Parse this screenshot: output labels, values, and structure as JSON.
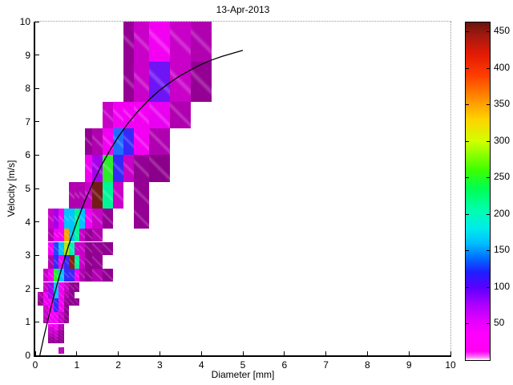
{
  "title": "13-Apr-2013",
  "chart_data": {
    "type": "heatmap",
    "title": "13-Apr-2013",
    "xlabel": "Diameter [mm]",
    "ylabel": "Velocity [m/s]",
    "xlim": [
      0,
      10
    ],
    "ylim": [
      0,
      10
    ],
    "xticks": [
      0,
      1,
      2,
      3,
      4,
      5,
      6,
      7,
      8,
      9,
      10
    ],
    "yticks": [
      0,
      1,
      2,
      3,
      4,
      5,
      6,
      7,
      8,
      9,
      10
    ],
    "grid": false,
    "legend": "none",
    "colorbar_ticks": [
      50,
      100,
      150,
      200,
      250,
      300,
      350,
      400,
      450
    ],
    "value_max": 462,
    "d_edges": [
      0.062,
      0.187,
      0.312,
      0.437,
      0.562,
      0.687,
      0.812,
      0.937,
      1.062,
      1.187,
      1.375,
      1.625,
      1.875,
      2.125,
      2.375,
      2.75,
      3.25,
      3.75,
      4.25,
      4.75
    ],
    "v_edges": [
      0.05,
      0.15,
      0.25,
      0.35,
      0.45,
      0.55,
      0.65,
      0.75,
      0.85,
      0.95,
      1.1,
      1.3,
      1.5,
      1.7,
      1.9,
      2.2,
      2.6,
      3.0,
      3.4,
      3.8,
      4.4,
      5.2,
      6.0,
      6.8,
      7.6,
      8.8,
      10.4
    ],
    "cells": [
      [
        4,
        0,
        22
      ],
      [
        4,
        1,
        22
      ],
      [
        2,
        3,
        12
      ],
      [
        3,
        3,
        15
      ],
      [
        4,
        3,
        12
      ],
      [
        2,
        4,
        15
      ],
      [
        3,
        4,
        20
      ],
      [
        4,
        4,
        12
      ],
      [
        2,
        5,
        20
      ],
      [
        3,
        5,
        25
      ],
      [
        4,
        5,
        15
      ],
      [
        2,
        6,
        25
      ],
      [
        3,
        6,
        25
      ],
      [
        4,
        6,
        15
      ],
      [
        2,
        7,
        25
      ],
      [
        3,
        7,
        35
      ],
      [
        4,
        7,
        20
      ],
      [
        2,
        8,
        35
      ],
      [
        3,
        8,
        35
      ],
      [
        4,
        8,
        20
      ],
      [
        1,
        9,
        20
      ],
      [
        2,
        9,
        35
      ],
      [
        3,
        9,
        35
      ],
      [
        4,
        9,
        25
      ],
      [
        5,
        9,
        12
      ],
      [
        1,
        10,
        25
      ],
      [
        2,
        10,
        38
      ],
      [
        3,
        10,
        35
      ],
      [
        4,
        10,
        25
      ],
      [
        5,
        10,
        12
      ],
      [
        1,
        11,
        25
      ],
      [
        2,
        11,
        35
      ],
      [
        3,
        11,
        110
      ],
      [
        4,
        11,
        35
      ],
      [
        5,
        11,
        12
      ],
      [
        0,
        12,
        15
      ],
      [
        1,
        12,
        35
      ],
      [
        2,
        12,
        35
      ],
      [
        3,
        12,
        110
      ],
      [
        4,
        12,
        35
      ],
      [
        5,
        12,
        15
      ],
      [
        6,
        12,
        12
      ],
      [
        7,
        12,
        12
      ],
      [
        0,
        13,
        20
      ],
      [
        1,
        13,
        35
      ],
      [
        2,
        13,
        70
      ],
      [
        3,
        13,
        160
      ],
      [
        4,
        13,
        35
      ],
      [
        5,
        13,
        20
      ],
      [
        6,
        13,
        12
      ],
      [
        1,
        14,
        25
      ],
      [
        2,
        14,
        70
      ],
      [
        3,
        14,
        160
      ],
      [
        4,
        14,
        35
      ],
      [
        5,
        14,
        25
      ],
      [
        6,
        14,
        15
      ],
      [
        7,
        14,
        12
      ],
      [
        1,
        15,
        25
      ],
      [
        2,
        15,
        35
      ],
      [
        3,
        15,
        260
      ],
      [
        4,
        15,
        160
      ],
      [
        5,
        15,
        110
      ],
      [
        6,
        15,
        110
      ],
      [
        7,
        15,
        35
      ],
      [
        8,
        15,
        20
      ],
      [
        9,
        15,
        12
      ],
      [
        10,
        15,
        20
      ],
      [
        11,
        15,
        12
      ],
      [
        2,
        16,
        20
      ],
      [
        3,
        16,
        110
      ],
      [
        4,
        16,
        35
      ],
      [
        5,
        16,
        110
      ],
      [
        6,
        16,
        440
      ],
      [
        7,
        16,
        210
      ],
      [
        8,
        16,
        25
      ],
      [
        9,
        16,
        12
      ],
      [
        10,
        16,
        15
      ],
      [
        2,
        17,
        35
      ],
      [
        3,
        17,
        120
      ],
      [
        4,
        17,
        160
      ],
      [
        5,
        17,
        310
      ],
      [
        6,
        17,
        200
      ],
      [
        7,
        17,
        25
      ],
      [
        8,
        17,
        25
      ],
      [
        9,
        17,
        12
      ],
      [
        10,
        17,
        15
      ],
      [
        11,
        17,
        12
      ],
      [
        2,
        18,
        20
      ],
      [
        3,
        18,
        35
      ],
      [
        4,
        18,
        35
      ],
      [
        5,
        18,
        360
      ],
      [
        6,
        18,
        160
      ],
      [
        7,
        18,
        210
      ],
      [
        8,
        18,
        25
      ],
      [
        9,
        18,
        15
      ],
      [
        10,
        18,
        20
      ],
      [
        2,
        19,
        25
      ],
      [
        3,
        19,
        70
      ],
      [
        4,
        19,
        35
      ],
      [
        5,
        19,
        160
      ],
      [
        6,
        19,
        160
      ],
      [
        7,
        19,
        210
      ],
      [
        8,
        19,
        160
      ],
      [
        9,
        19,
        35
      ],
      [
        10,
        19,
        25
      ],
      [
        11,
        19,
        15
      ],
      [
        14,
        19,
        15
      ],
      [
        6,
        20,
        20
      ],
      [
        7,
        20,
        20
      ],
      [
        8,
        20,
        20
      ],
      [
        9,
        20,
        25
      ],
      [
        10,
        20,
        450
      ],
      [
        11,
        20,
        210
      ],
      [
        12,
        20,
        25
      ],
      [
        14,
        20,
        15
      ],
      [
        9,
        21,
        35
      ],
      [
        10,
        21,
        70
      ],
      [
        11,
        21,
        260
      ],
      [
        12,
        21,
        110
      ],
      [
        13,
        21,
        25
      ],
      [
        14,
        21,
        15
      ],
      [
        15,
        21,
        10
      ],
      [
        9,
        22,
        15
      ],
      [
        10,
        22,
        20
      ],
      [
        11,
        22,
        35
      ],
      [
        12,
        22,
        140
      ],
      [
        13,
        22,
        110
      ],
      [
        14,
        22,
        35
      ],
      [
        15,
        22,
        20
      ],
      [
        11,
        23,
        25
      ],
      [
        12,
        23,
        35
      ],
      [
        13,
        23,
        35
      ],
      [
        14,
        23,
        35
      ],
      [
        15,
        23,
        50
      ],
      [
        16,
        23,
        20
      ],
      [
        13,
        24,
        15
      ],
      [
        14,
        24,
        25
      ],
      [
        15,
        24,
        90
      ],
      [
        16,
        24,
        25
      ],
      [
        17,
        24,
        15
      ],
      [
        13,
        25,
        15
      ],
      [
        14,
        25,
        25
      ],
      [
        15,
        25,
        35
      ],
      [
        16,
        25,
        25
      ],
      [
        17,
        25,
        20
      ]
    ],
    "curve": {
      "name": "terminal-velocity-curve",
      "points": [
        [
          0.11,
          0.0
        ],
        [
          0.2,
          0.52
        ],
        [
          0.4,
          1.55
        ],
        [
          0.6,
          2.46
        ],
        [
          0.8,
          3.28
        ],
        [
          1.0,
          4.0
        ],
        [
          1.2,
          4.64
        ],
        [
          1.4,
          5.2
        ],
        [
          1.6,
          5.71
        ],
        [
          1.8,
          6.15
        ],
        [
          2.0,
          6.55
        ],
        [
          2.25,
          6.98
        ],
        [
          2.5,
          7.35
        ],
        [
          2.75,
          7.67
        ],
        [
          3.0,
          7.95
        ],
        [
          3.25,
          8.18
        ],
        [
          3.5,
          8.39
        ],
        [
          3.75,
          8.56
        ],
        [
          4.0,
          8.72
        ],
        [
          4.25,
          8.85
        ],
        [
          4.5,
          8.96
        ],
        [
          4.75,
          9.05
        ],
        [
          5.0,
          9.14
        ]
      ]
    }
  },
  "palette": {
    "curve_color": "#000000",
    "cell_stops": [
      [
        10,
        "#8b008b"
      ],
      [
        15,
        "#940094"
      ],
      [
        22,
        "#bb00bb"
      ],
      [
        30,
        "#de00de"
      ],
      [
        38,
        "#ff00ff"
      ],
      [
        55,
        "#e100eb"
      ],
      [
        70,
        "#a500eb"
      ],
      [
        90,
        "#6e14f5"
      ],
      [
        110,
        "#3728fa"
      ],
      [
        140,
        "#1e6eff"
      ],
      [
        160,
        "#00c3ff"
      ],
      [
        185,
        "#00ebd7"
      ],
      [
        210,
        "#00f596"
      ],
      [
        260,
        "#2deb2d"
      ],
      [
        310,
        "#b4e600"
      ],
      [
        360,
        "#ffa000"
      ],
      [
        400,
        "#eb2d0f"
      ],
      [
        450,
        "#731c16"
      ]
    ],
    "colorbar_stops": [
      [
        0,
        "#ffffff"
      ],
      [
        4,
        "#ff78f8"
      ],
      [
        12,
        "#ff00f2"
      ],
      [
        35,
        "#ff00ff"
      ],
      [
        55,
        "#e100ff"
      ],
      [
        75,
        "#af00ff"
      ],
      [
        100,
        "#5a00ff"
      ],
      [
        120,
        "#1e1eff"
      ],
      [
        140,
        "#006eff"
      ],
      [
        160,
        "#00beff"
      ],
      [
        180,
        "#00ebeb"
      ],
      [
        205,
        "#00ffaf"
      ],
      [
        235,
        "#00ff50"
      ],
      [
        260,
        "#3cff00"
      ],
      [
        300,
        "#d2ff00"
      ],
      [
        330,
        "#ffd200"
      ],
      [
        355,
        "#ff9600"
      ],
      [
        390,
        "#ff3c00"
      ],
      [
        420,
        "#e11905"
      ],
      [
        445,
        "#a0190f"
      ],
      [
        462,
        "#69140f"
      ]
    ]
  }
}
